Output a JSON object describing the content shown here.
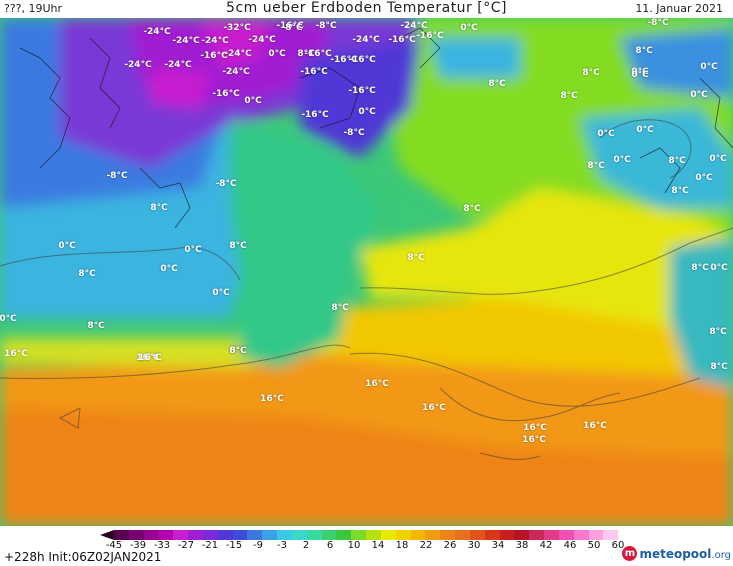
{
  "header": {
    "left_text": "???, 19Uhr",
    "title": "5cm ueber Erdboden Temperatur [°C]",
    "date": "11. Januar 2021"
  },
  "map": {
    "labels": [
      "-32°C",
      "-16°C",
      "-24°C",
      "-24°C",
      "-24°C",
      "-24°C",
      "-16°C",
      "-24°C",
      "-16°C",
      "0°C",
      "-8°C",
      "-8°C",
      "8°C",
      "-16°C",
      "-24°C",
      "-24°C",
      "-24°C",
      "-16°C",
      "-16°C",
      "0°C",
      "-24°C",
      "-16°C",
      "-24°C",
      "-16°C",
      "-16°C",
      "-16°C",
      "0°C",
      "-16°C",
      "-8°C",
      "0°C",
      "-8°C",
      "-8°C",
      "-8°C",
      "8°C",
      "8°C",
      "0°C",
      "0°C",
      "8°C",
      "8°C",
      "0°C",
      "0°C",
      "0°C",
      "0°C",
      "0°C",
      "8°C",
      "0°C",
      "8°C",
      "8°C",
      "8°C",
      "8°C",
      "8°C",
      "8°C",
      "0°C",
      "0°C",
      "8°C",
      "0°C",
      "8°C",
      "0°C",
      "8°C",
      "0°C",
      "0°C",
      "8°C",
      "8°C",
      "8°C",
      "0°C",
      "0°C",
      "16°C",
      "16°C",
      "16°C",
      "16°C",
      "16°C",
      "16°C",
      "16°C",
      "16°C",
      "16°C",
      "8°C"
    ]
  },
  "colorbar": {
    "ticks": [
      "-45",
      "-39",
      "-33",
      "-27",
      "-21",
      "-15",
      "-9",
      "-3",
      "2",
      "6",
      "10",
      "14",
      "18",
      "22",
      "26",
      "30",
      "34",
      "38",
      "42",
      "46",
      "50",
      "60"
    ],
    "colors": [
      "#5a0050",
      "#7a006e",
      "#9a0090",
      "#b400b0",
      "#c81ecf",
      "#a01ed2",
      "#7a2ad8",
      "#5038d6",
      "#3a4ed8",
      "#3a78e0",
      "#3aa0e8",
      "#3ac8e8",
      "#3ad8c8",
      "#38d8a0",
      "#38d070",
      "#38c83a",
      "#78dc28",
      "#b8e010",
      "#e8e800",
      "#f2d000",
      "#f4b800",
      "#f29c10",
      "#ee8418",
      "#e8701c",
      "#e05418",
      "#d43818",
      "#c81e1e",
      "#b41428",
      "#c8285a",
      "#e03c88",
      "#f050b4",
      "#f878d0",
      "#fca0e0",
      "#fec8f0"
    ]
  },
  "footer": {
    "run_info": "+228h  Init:06Z02JAN2021",
    "brand_logo": "m",
    "brand_name": "meteopool",
    "brand_tld": ".org"
  }
}
